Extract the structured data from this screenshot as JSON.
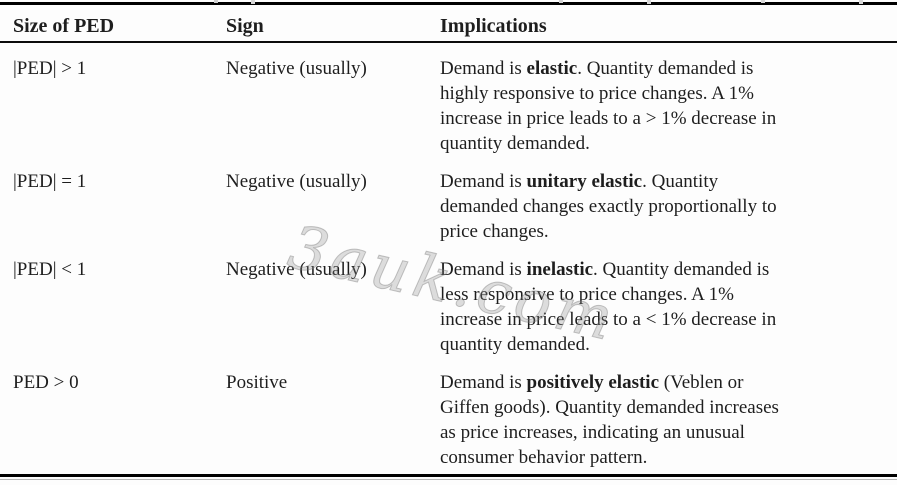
{
  "watermark": {
    "text": "3auk.com",
    "color": "#a8a8a8"
  },
  "table": {
    "headers": {
      "size": "Size of PED",
      "sign": "Sign",
      "implications": "Implications"
    },
    "rows": [
      {
        "size": "|PED| > 1",
        "sign": "Negative (usually)",
        "implication_text": "Demand is elastic. Quantity demanded is highly responsive to price changes. A 1% increase in price leads to a > 1% decrease in quantity demanded.",
        "implication_lines": [
          [
            {
              "t": "Demand is "
            },
            {
              "t": "elastic",
              "b": true
            },
            {
              "t": ". Quantity demanded is"
            }
          ],
          [
            {
              "t": "highly responsive to price changes. A 1%"
            }
          ],
          [
            {
              "t": "increase in price leads to a > 1% decrease in"
            }
          ],
          [
            {
              "t": "quantity demanded."
            }
          ]
        ]
      },
      {
        "size": "|PED| = 1",
        "sign": "Negative (usually)",
        "implication_text": "Demand is unitary elastic. Quantity demanded changes exactly proportionally to price changes.",
        "implication_lines": [
          [
            {
              "t": "Demand is "
            },
            {
              "t": "unitary elastic",
              "b": true
            },
            {
              "t": ". Quantity"
            }
          ],
          [
            {
              "t": "demanded changes exactly proportionally to"
            }
          ],
          [
            {
              "t": "price changes."
            }
          ]
        ]
      },
      {
        "size": "|PED| < 1",
        "sign": "Negative (usually)",
        "implication_text": "Demand is inelastic. Quantity demanded is less responsive to price changes. A 1% increase in price leads to a < 1% decrease in quantity demanded.",
        "implication_lines": [
          [
            {
              "t": "Demand is "
            },
            {
              "t": "inelastic",
              "b": true
            },
            {
              "t": ". Quantity demanded is"
            }
          ],
          [
            {
              "t": "less responsive to price changes. A 1%"
            }
          ],
          [
            {
              "t": "increase in price leads to a < 1% decrease in"
            }
          ],
          [
            {
              "t": "quantity demanded."
            }
          ]
        ]
      },
      {
        "size": "PED > 0",
        "sign": "Positive",
        "implication_text": "Demand is positively elastic (Veblen or Giffen goods). Quantity demanded increases as price increases, indicating an unusual consumer behavior pattern.",
        "implication_lines": [
          [
            {
              "t": "Demand is "
            },
            {
              "t": "positively elastic",
              "b": true
            },
            {
              "t": " (Veblen or"
            }
          ],
          [
            {
              "t": "Giffen goods). Quantity demanded increases"
            }
          ],
          [
            {
              "t": "as price increases, indicating an unusual"
            }
          ],
          [
            {
              "t": "consumer behavior pattern."
            }
          ]
        ]
      }
    ]
  }
}
